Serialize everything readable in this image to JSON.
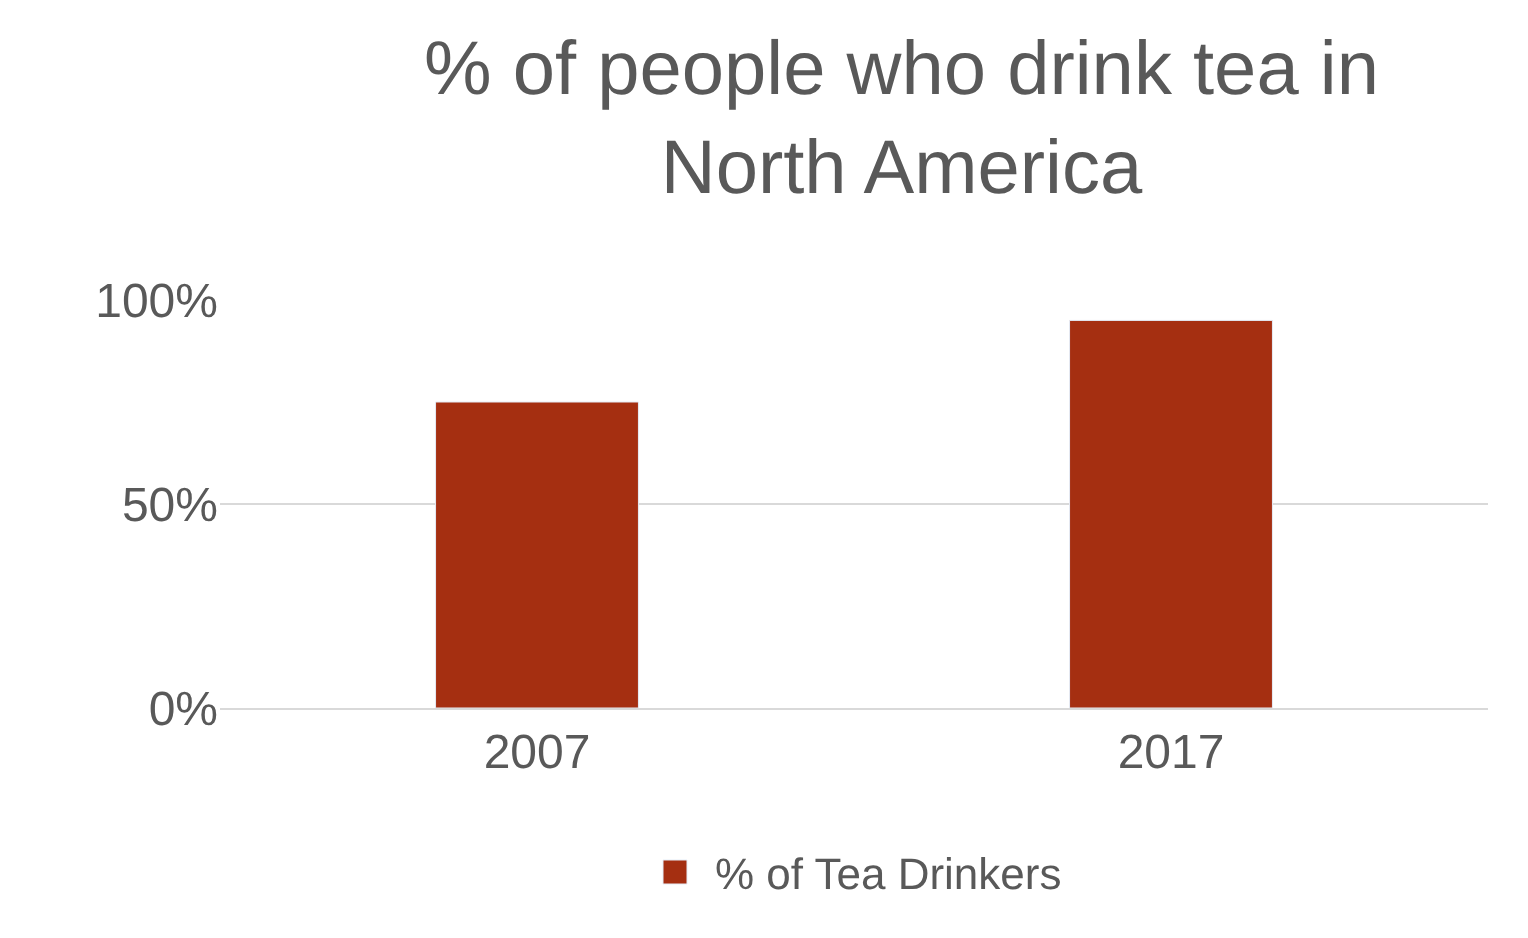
{
  "chart_data": {
    "type": "bar",
    "title": "% of people who drink tea in North America",
    "categories": [
      "2007",
      "2017"
    ],
    "series": [
      {
        "name": "% of Tea Drinkers",
        "color": "#a52f11",
        "values": [
          75,
          95
        ]
      }
    ],
    "ylim": [
      0,
      100
    ],
    "yticks": [
      {
        "value": 0,
        "label": "0%"
      },
      {
        "value": 50,
        "label": "50%"
      },
      {
        "value": 100,
        "label": "100%"
      }
    ],
    "grid": "y",
    "legend": "bottom"
  }
}
